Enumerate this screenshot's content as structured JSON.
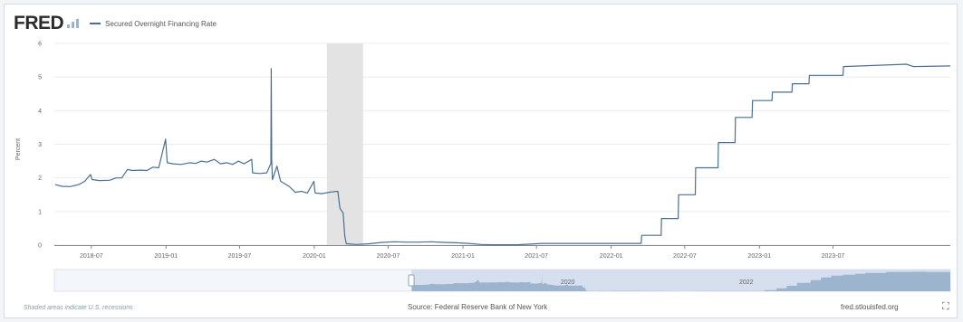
{
  "header": {
    "logo": "FRED",
    "legend_label": "Secured Overnight Financing Rate"
  },
  "footer": {
    "recession_note": "Shaded areas indicate U.S. recessions",
    "source": "Source: Federal Reserve Bank of New York",
    "site": "fred.stlouisfed.org"
  },
  "colors": {
    "series": "#4a6f94",
    "recession": "#e3e3e3",
    "navigator_fill": "#c7d6e8",
    "grid": "#ececec"
  },
  "chart_data": {
    "type": "line",
    "ylabel": "Percent",
    "ylim": [
      0,
      6
    ],
    "yticks": [
      0,
      1,
      2,
      3,
      4,
      5,
      6
    ],
    "xlim": [
      "2018-04-01",
      "2024-04-15"
    ],
    "xticks": [
      {
        "date": "2018-07-01",
        "label": "2018-07"
      },
      {
        "date": "2019-01-01",
        "label": "2019-01"
      },
      {
        "date": "2019-07-01",
        "label": "2019-07"
      },
      {
        "date": "2020-01-01",
        "label": "2020-01"
      },
      {
        "date": "2020-07-01",
        "label": "2020-07"
      },
      {
        "date": "2021-01-01",
        "label": "2021-01"
      },
      {
        "date": "2021-07-01",
        "label": "2021-07"
      },
      {
        "date": "2022-01-01",
        "label": "2022-01"
      },
      {
        "date": "2022-07-01",
        "label": "2022-07"
      },
      {
        "date": "2023-01-01",
        "label": "2023-01"
      },
      {
        "date": "2023-07-01",
        "label": "2023-07"
      }
    ],
    "recessions": [
      {
        "start": "2020-02-01",
        "end": "2020-04-30"
      }
    ],
    "series": [
      {
        "points": [
          [
            "2018-04-03",
            1.8
          ],
          [
            "2018-04-20",
            1.75
          ],
          [
            "2018-05-10",
            1.74
          ],
          [
            "2018-05-31",
            1.8
          ],
          [
            "2018-06-15",
            1.9
          ],
          [
            "2018-06-29",
            2.1
          ],
          [
            "2018-07-03",
            1.95
          ],
          [
            "2018-07-20",
            1.92
          ],
          [
            "2018-08-15",
            1.93
          ],
          [
            "2018-08-31",
            2.0
          ],
          [
            "2018-09-14",
            2.0
          ],
          [
            "2018-09-28",
            2.25
          ],
          [
            "2018-10-10",
            2.22
          ],
          [
            "2018-10-31",
            2.23
          ],
          [
            "2018-11-15",
            2.22
          ],
          [
            "2018-11-30",
            2.32
          ],
          [
            "2018-12-14",
            2.3
          ],
          [
            "2018-12-31",
            3.15
          ],
          [
            "2019-01-04",
            2.45
          ],
          [
            "2019-01-18",
            2.42
          ],
          [
            "2019-02-08",
            2.4
          ],
          [
            "2019-02-28",
            2.45
          ],
          [
            "2019-03-15",
            2.43
          ],
          [
            "2019-03-29",
            2.5
          ],
          [
            "2019-04-12",
            2.47
          ],
          [
            "2019-04-30",
            2.55
          ],
          [
            "2019-05-15",
            2.42
          ],
          [
            "2019-05-31",
            2.45
          ],
          [
            "2019-06-14",
            2.4
          ],
          [
            "2019-06-28",
            2.5
          ],
          [
            "2019-07-12",
            2.42
          ],
          [
            "2019-07-31",
            2.55
          ],
          [
            "2019-08-02",
            2.15
          ],
          [
            "2019-08-20",
            2.13
          ],
          [
            "2019-09-06",
            2.15
          ],
          [
            "2019-09-16",
            2.43
          ],
          [
            "2019-09-17",
            5.25
          ],
          [
            "2019-09-18",
            2.55
          ],
          [
            "2019-09-20",
            1.95
          ],
          [
            "2019-10-01",
            2.35
          ],
          [
            "2019-10-10",
            1.9
          ],
          [
            "2019-10-31",
            1.75
          ],
          [
            "2019-11-15",
            1.57
          ],
          [
            "2019-11-30",
            1.6
          ],
          [
            "2019-12-15",
            1.55
          ],
          [
            "2019-12-31",
            1.9
          ],
          [
            "2020-01-03",
            1.55
          ],
          [
            "2020-01-20",
            1.53
          ],
          [
            "2020-02-10",
            1.58
          ],
          [
            "2020-02-28",
            1.6
          ],
          [
            "2020-03-04",
            1.1
          ],
          [
            "2020-03-12",
            0.95
          ],
          [
            "2020-03-16",
            0.26
          ],
          [
            "2020-03-20",
            0.04
          ],
          [
            "2020-04-15",
            0.02
          ],
          [
            "2020-05-15",
            0.04
          ],
          [
            "2020-06-15",
            0.08
          ],
          [
            "2020-07-15",
            0.1
          ],
          [
            "2020-08-15",
            0.09
          ],
          [
            "2020-09-15",
            0.09
          ],
          [
            "2020-10-15",
            0.1
          ],
          [
            "2020-11-15",
            0.08
          ],
          [
            "2020-12-15",
            0.07
          ],
          [
            "2021-01-15",
            0.05
          ],
          [
            "2021-02-15",
            0.02
          ],
          [
            "2021-03-15",
            0.01
          ],
          [
            "2021-04-15",
            0.01
          ],
          [
            "2021-05-15",
            0.01
          ],
          [
            "2021-06-15",
            0.03
          ],
          [
            "2021-07-15",
            0.05
          ],
          [
            "2021-08-15",
            0.05
          ],
          [
            "2021-09-15",
            0.05
          ],
          [
            "2021-10-15",
            0.05
          ],
          [
            "2021-11-15",
            0.05
          ],
          [
            "2021-12-15",
            0.05
          ],
          [
            "2022-01-15",
            0.05
          ],
          [
            "2022-02-15",
            0.05
          ],
          [
            "2022-03-16",
            0.05
          ],
          [
            "2022-03-17",
            0.29
          ],
          [
            "2022-05-04",
            0.29
          ],
          [
            "2022-05-05",
            0.79
          ],
          [
            "2022-06-15",
            0.79
          ],
          [
            "2022-06-16",
            1.5
          ],
          [
            "2022-07-27",
            1.5
          ],
          [
            "2022-07-28",
            2.3
          ],
          [
            "2022-09-21",
            2.3
          ],
          [
            "2022-09-22",
            3.05
          ],
          [
            "2022-11-02",
            3.05
          ],
          [
            "2022-11-03",
            3.8
          ],
          [
            "2022-12-14",
            3.8
          ],
          [
            "2022-12-15",
            4.3
          ],
          [
            "2023-02-01",
            4.3
          ],
          [
            "2023-02-02",
            4.55
          ],
          [
            "2023-03-22",
            4.55
          ],
          [
            "2023-03-23",
            4.8
          ],
          [
            "2023-05-03",
            4.8
          ],
          [
            "2023-05-04",
            5.05
          ],
          [
            "2023-07-26",
            5.05
          ],
          [
            "2023-07-27",
            5.31
          ],
          [
            "2023-12-29",
            5.38
          ],
          [
            "2024-01-15",
            5.31
          ],
          [
            "2024-04-15",
            5.33
          ]
        ]
      }
    ],
    "navigator": {
      "xlim": [
        "2014-04-01",
        "2024-04-15"
      ],
      "selected": [
        "2018-04-01",
        "2024-04-15"
      ],
      "labels": [
        {
          "date": "2020-01-01",
          "label": "2020"
        },
        {
          "date": "2022-01-01",
          "label": "2022"
        }
      ]
    }
  }
}
